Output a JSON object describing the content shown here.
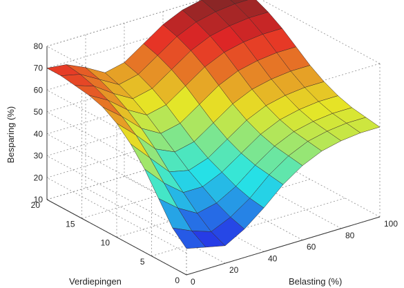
{
  "chart_data": {
    "type": "surface",
    "title": "",
    "xlabel": "Belasting (%)",
    "ylabel": "Verdiepingen",
    "zlabel": "Besparing (%)",
    "x_ticks": [
      0,
      20,
      40,
      60,
      80,
      100
    ],
    "y_ticks": [
      0,
      5,
      10,
      15,
      20
    ],
    "z_ticks": [
      10,
      20,
      30,
      40,
      50,
      60,
      70,
      80
    ],
    "xlim": [
      0,
      100
    ],
    "ylim": [
      0,
      20
    ],
    "zlim": [
      10,
      80
    ],
    "grid": true,
    "colormap": "jet",
    "x": [
      0,
      10,
      20,
      30,
      40,
      50,
      60,
      70,
      80,
      90,
      100
    ],
    "y": [
      0,
      2,
      4,
      6,
      8,
      10,
      12,
      14,
      16,
      18,
      20
    ],
    "z": [
      [
        22,
        20,
        18,
        23,
        30,
        38,
        44,
        48,
        50,
        51,
        51
      ],
      [
        28,
        24,
        21,
        25,
        31,
        39,
        45,
        49,
        51,
        52,
        52
      ],
      [
        38,
        31,
        26,
        28,
        33,
        40,
        46,
        50,
        52,
        53,
        53
      ],
      [
        48,
        39,
        32,
        32,
        36,
        42,
        48,
        52,
        54,
        55,
        55
      ],
      [
        56,
        47,
        38,
        36,
        39,
        45,
        51,
        55,
        57,
        58,
        58
      ],
      [
        62,
        54,
        45,
        41,
        43,
        49,
        55,
        59,
        61,
        62,
        62
      ],
      [
        66,
        59,
        51,
        46,
        48,
        54,
        60,
        64,
        66,
        67,
        67
      ],
      [
        68,
        63,
        56,
        51,
        53,
        59,
        65,
        69,
        71,
        72,
        72
      ],
      [
        69,
        66,
        60,
        55,
        57,
        63,
        69,
        73,
        75,
        76,
        76
      ],
      [
        70,
        68,
        63,
        58,
        60,
        66,
        72,
        76,
        78,
        79,
        79
      ],
      [
        70,
        69,
        65,
        60,
        62,
        68,
        74,
        78,
        80,
        81,
        81
      ]
    ]
  }
}
